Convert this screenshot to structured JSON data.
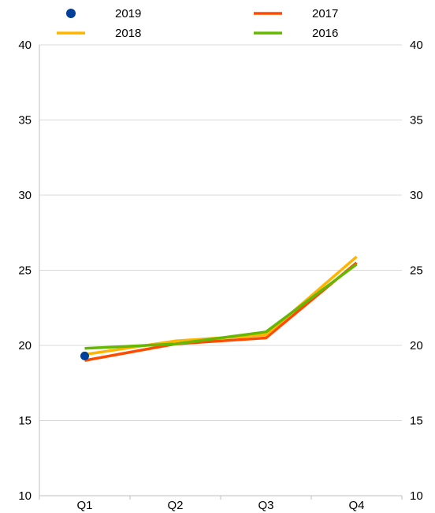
{
  "chart_data": {
    "type": "line",
    "categories": [
      "Q1",
      "Q2",
      "Q3",
      "Q4"
    ],
    "ylim": [
      10,
      40
    ],
    "yticks": [
      10,
      15,
      20,
      25,
      30,
      35,
      40
    ],
    "grid": "horizontal",
    "right_axis_mirrors_left": true,
    "legend_position": "top",
    "series": [
      {
        "name": "2019",
        "style": "marker",
        "color": "#003f9a",
        "values": [
          19.3,
          null,
          null,
          null
        ]
      },
      {
        "name": "2017",
        "style": "line",
        "color": "#ff4b00",
        "values": [
          19.0,
          20.1,
          20.5,
          25.5
        ]
      },
      {
        "name": "2018",
        "style": "line",
        "color": "#ffb400",
        "values": [
          19.4,
          20.3,
          20.7,
          25.9
        ]
      },
      {
        "name": "2016",
        "style": "line",
        "color": "#65b800",
        "values": [
          19.8,
          20.1,
          20.9,
          25.4
        ]
      }
    ],
    "legend_order": [
      "2019",
      "2017",
      "2018",
      "2016"
    ]
  }
}
